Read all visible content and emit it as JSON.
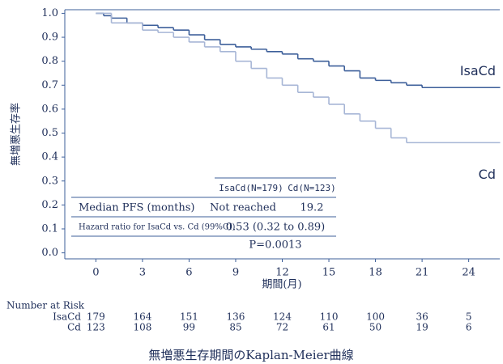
{
  "chart_data": {
    "type": "step",
    "y_label": "無増悪生存率",
    "x_label": "期間(月)",
    "xlim": [
      -2,
      26
    ],
    "ylim": [
      -0.025,
      1.015
    ],
    "xticks": [
      0,
      3,
      6,
      9,
      12,
      15,
      18,
      21,
      24
    ],
    "yticks": [
      {
        "value": 0,
        "label": "0.0"
      },
      0.1,
      0.2,
      0.3,
      0.4,
      0.5,
      0.6,
      0.7,
      0.8,
      0.9,
      {
        "value": 1,
        "label": "1.0"
      }
    ],
    "series": [
      {
        "name": "IsaCd",
        "color": "#3d5f9a",
        "x": [
          0,
          0.5,
          1,
          2,
          3,
          4,
          5,
          6,
          7,
          8,
          9,
          10,
          11,
          12,
          13,
          14,
          15,
          16,
          17,
          18,
          19,
          20,
          21,
          26
        ],
        "values": [
          1.0,
          0.99,
          0.98,
          0.96,
          0.95,
          0.94,
          0.93,
          0.91,
          0.89,
          0.87,
          0.86,
          0.85,
          0.84,
          0.83,
          0.81,
          0.8,
          0.78,
          0.76,
          0.73,
          0.72,
          0.71,
          0.7,
          0.69,
          0.69
        ]
      },
      {
        "name": "Cd",
        "color": "#a7b6d6",
        "x": [
          0,
          1,
          3,
          4,
          5,
          6,
          7,
          8,
          9,
          10,
          11,
          12,
          13,
          14,
          15,
          16,
          17,
          18,
          19,
          20,
          26
        ],
        "values": [
          1.0,
          0.96,
          0.93,
          0.92,
          0.9,
          0.88,
          0.86,
          0.84,
          0.8,
          0.77,
          0.73,
          0.7,
          0.67,
          0.65,
          0.62,
          0.58,
          0.55,
          0.52,
          0.48,
          0.46,
          0.46
        ]
      }
    ]
  },
  "summary_table": {
    "headers": [
      "IsaCd(N=179)",
      "Cd(N=123)"
    ],
    "rows": [
      [
        "Median PFS (months)",
        "Not reached",
        "19.2"
      ],
      [
        "Hazard ratio for IsaCd vs. Cd (99%CI)",
        "0.53 (0.32 to 0.89)"
      ],
      [
        "P=0.0013"
      ]
    ]
  },
  "risk_table": {
    "title": "Number at Risk",
    "rows": [
      {
        "name": "IsaCd",
        "values": [
          179,
          164,
          151,
          136,
          124,
          110,
          100,
          36,
          5
        ]
      },
      {
        "name": "Cd",
        "values": [
          123,
          108,
          99,
          85,
          72,
          61,
          50,
          19,
          6
        ]
      }
    ]
  },
  "caption": "無増悪生存期間のKaplan-Meier曲線"
}
